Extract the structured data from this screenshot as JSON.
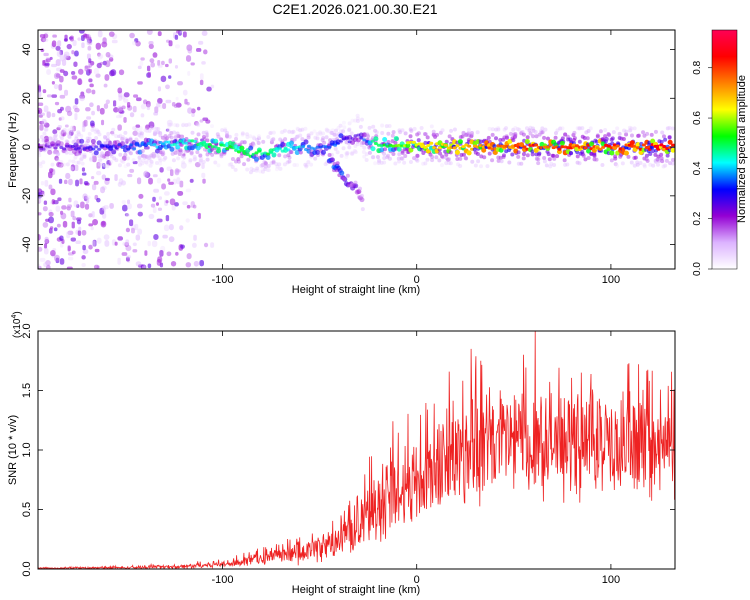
{
  "title": "C2E1.2026.021.00.30.E21",
  "colors": {
    "snr_line": "#ee2222",
    "background": "#ffffff",
    "axis": "#000000"
  },
  "chart_data": [
    {
      "type": "heatmap",
      "xlabel": "Height of straight line (km)",
      "ylabel": "Frequency (Hz)",
      "xlim": [
        -195,
        133
      ],
      "ylim": [
        -50,
        48
      ],
      "xticks": [
        -100,
        0,
        100
      ],
      "yticks": [
        -40,
        -20,
        0,
        20,
        40
      ],
      "colorbar": {
        "label": "Normalized spectral amplitude",
        "range": [
          0.0,
          0.95
        ],
        "ticks": [
          0.0,
          0.2,
          0.4,
          0.6,
          0.8
        ],
        "colormap": [
          "#ffffff",
          "#dcb3ff",
          "#9400d3",
          "#0000ff",
          "#00ffff",
          "#00ff00",
          "#ffff00",
          "#ff8000",
          "#ff0000",
          "#ff0055"
        ]
      },
      "ridge": {
        "x": [
          -190,
          -170,
          -150,
          -130,
          -115,
          -100,
          -85,
          -70,
          -60,
          -50,
          -40,
          -35,
          -30,
          -25,
          -20,
          -10,
          0,
          20,
          40,
          60,
          80,
          100,
          120,
          133
        ],
        "freq": [
          0,
          0,
          0,
          1,
          2,
          0,
          -3,
          -1,
          0,
          -1,
          2,
          3,
          5,
          2,
          1,
          1,
          1,
          0,
          0,
          0,
          0,
          0,
          0,
          0
        ],
        "amplitude": [
          0.25,
          0.3,
          0.35,
          0.45,
          0.5,
          0.55,
          0.55,
          0.5,
          0.45,
          0.4,
          0.35,
          0.3,
          0.3,
          0.4,
          0.55,
          0.6,
          0.7,
          0.75,
          0.8,
          0.85,
          0.85,
          0.85,
          0.9,
          0.9
        ]
      },
      "branch": {
        "x": [
          -45,
          -40,
          -35,
          -30,
          -28
        ],
        "freq": [
          -5,
          -10,
          -15,
          -18,
          -23
        ],
        "amplitude": [
          0.35,
          0.4,
          0.3,
          0.25,
          0.2
        ]
      },
      "noise_region_x": [
        -195,
        -105
      ]
    },
    {
      "type": "line",
      "xlabel": "Height of straight line (km)",
      "ylabel": "SNR (10 * v/v)",
      "multiplier": "(x10",
      "multiplier_exp": "4",
      "multiplier_close": ")",
      "xlim": [
        -195,
        133
      ],
      "ylim": [
        0.0,
        2.0
      ],
      "xticks": [
        -100,
        0,
        100
      ],
      "yticks": [
        0.0,
        0.5,
        1.0,
        1.5,
        2.0
      ],
      "envelope": {
        "x": [
          -195,
          -150,
          -120,
          -100,
          -80,
          -60,
          -40,
          -30,
          -20,
          -10,
          0,
          10,
          20,
          30,
          40,
          50,
          60,
          70,
          80,
          90,
          100,
          110,
          120,
          133
        ],
        "base": [
          0.005,
          0.01,
          0.02,
          0.04,
          0.08,
          0.12,
          0.22,
          0.35,
          0.5,
          0.62,
          0.7,
          0.8,
          0.9,
          0.95,
          1.0,
          1.05,
          1.05,
          1.02,
          1.0,
          0.98,
          0.98,
          0.97,
          0.96,
          0.95
        ],
        "spread": [
          0.005,
          0.01,
          0.02,
          0.03,
          0.06,
          0.1,
          0.15,
          0.25,
          0.35,
          0.4,
          0.4,
          0.45,
          0.5,
          0.5,
          0.5,
          0.5,
          0.5,
          0.5,
          0.45,
          0.45,
          0.45,
          0.45,
          0.45,
          0.45
        ]
      },
      "peaks": [
        {
          "x": 61,
          "y": 2.0
        },
        {
          "x": 28,
          "y": 1.85
        },
        {
          "x": 55,
          "y": 1.8
        },
        {
          "x": 33,
          "y": 1.75
        }
      ]
    }
  ]
}
